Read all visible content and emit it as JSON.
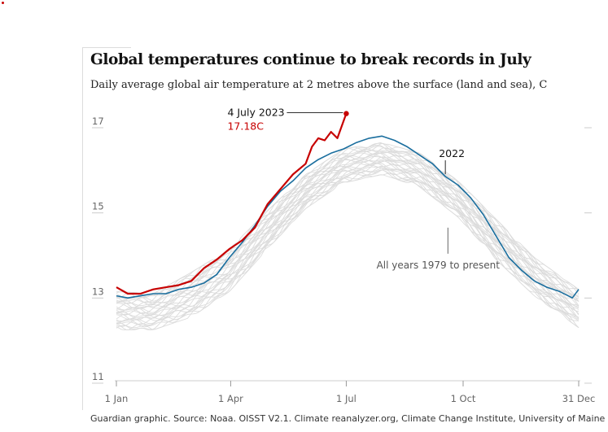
{
  "header": {
    "title": "Global temperatures continue to break records in July",
    "subtitle": "Daily average global air temperature at 2 metres above the surface (land and sea), C"
  },
  "footer": {
    "source": "Guardian graphic. Source: Noaa. OISST V2.1. Climate reanalyzer.org, Climate Change Institute, University of Maine"
  },
  "colors": {
    "record": "#c70000",
    "year2022": "#1a6e9e",
    "background_years": "#dcdcdc",
    "axis": "#cccccc"
  },
  "chart_data": {
    "type": "line",
    "title": "Global temperatures continue to break records in July",
    "subtitle": "Daily average global air temperature at 2 metres above the surface (land and sea), C",
    "x_unit": "day of year",
    "xlim": [
      1,
      365
    ],
    "ylim": [
      11,
      17
    ],
    "x_ticks": [
      {
        "label": "1 Jan",
        "day": 1
      },
      {
        "label": "1 Apr",
        "day": 91
      },
      {
        "label": "1 Jul",
        "day": 182
      },
      {
        "label": "1 Oct",
        "day": 274
      },
      {
        "label": "31 Dec",
        "day": 365
      }
    ],
    "y_ticks": [
      {
        "label": "17",
        "value": 17
      },
      {
        "label": "15",
        "value": 15
      },
      {
        "label": "13",
        "value": 13
      },
      {
        "label": "11",
        "value": 11
      }
    ],
    "grid": false,
    "series": [
      {
        "name": "All years 1979 to present",
        "role": "background",
        "band": [
          {
            "day": 1,
            "low": 12.1,
            "high": 13.0
          },
          {
            "day": 30,
            "low": 12.1,
            "high": 12.95
          },
          {
            "day": 60,
            "low": 12.4,
            "high": 13.45
          },
          {
            "day": 90,
            "low": 13.0,
            "high": 14.0
          },
          {
            "day": 120,
            "low": 14.0,
            "high": 14.9
          },
          {
            "day": 150,
            "low": 14.95,
            "high": 15.75
          },
          {
            "day": 180,
            "low": 15.55,
            "high": 16.35
          },
          {
            "day": 210,
            "low": 15.75,
            "high": 16.5
          },
          {
            "day": 240,
            "low": 15.45,
            "high": 16.25
          },
          {
            "day": 270,
            "low": 14.75,
            "high": 15.6
          },
          {
            "day": 300,
            "low": 13.75,
            "high": 14.7
          },
          {
            "day": 330,
            "low": 12.9,
            "high": 13.8
          },
          {
            "day": 365,
            "low": 12.15,
            "high": 13.05
          }
        ]
      },
      {
        "name": "2022",
        "x": [
          1,
          10,
          20,
          30,
          40,
          50,
          60,
          70,
          80,
          90,
          100,
          110,
          120,
          130,
          140,
          150,
          160,
          170,
          180,
          190,
          200,
          210,
          220,
          230,
          240,
          250,
          260,
          270,
          280,
          290,
          300,
          310,
          320,
          330,
          340,
          350,
          360,
          365
        ],
        "y": [
          12.9,
          12.85,
          12.9,
          12.95,
          12.95,
          13.05,
          13.1,
          13.2,
          13.4,
          13.8,
          14.15,
          14.55,
          15.0,
          15.35,
          15.6,
          15.9,
          16.1,
          16.25,
          16.35,
          16.5,
          16.6,
          16.65,
          16.55,
          16.4,
          16.2,
          16.0,
          15.7,
          15.5,
          15.2,
          14.8,
          14.3,
          13.8,
          13.5,
          13.25,
          13.1,
          13.0,
          12.85,
          13.05
        ]
      },
      {
        "name": "2023",
        "x": [
          1,
          10,
          20,
          30,
          40,
          50,
          60,
          70,
          80,
          90,
          100,
          110,
          120,
          130,
          140,
          150,
          155,
          160,
          165,
          170,
          175,
          182
        ],
        "y": [
          13.1,
          12.95,
          12.95,
          13.05,
          13.1,
          13.15,
          13.25,
          13.55,
          13.75,
          14.0,
          14.2,
          14.5,
          15.05,
          15.4,
          15.75,
          16.0,
          16.4,
          16.6,
          16.55,
          16.75,
          16.6,
          17.18
        ]
      }
    ],
    "annotations": [
      {
        "label": "4 July 2023",
        "value_label": "17.18C",
        "day": 182,
        "value": 17.18
      },
      {
        "label": "2022",
        "day": 260,
        "value": 15.7
      },
      {
        "label": "All years 1979 to present",
        "day": 262,
        "value": 14.5
      }
    ]
  }
}
